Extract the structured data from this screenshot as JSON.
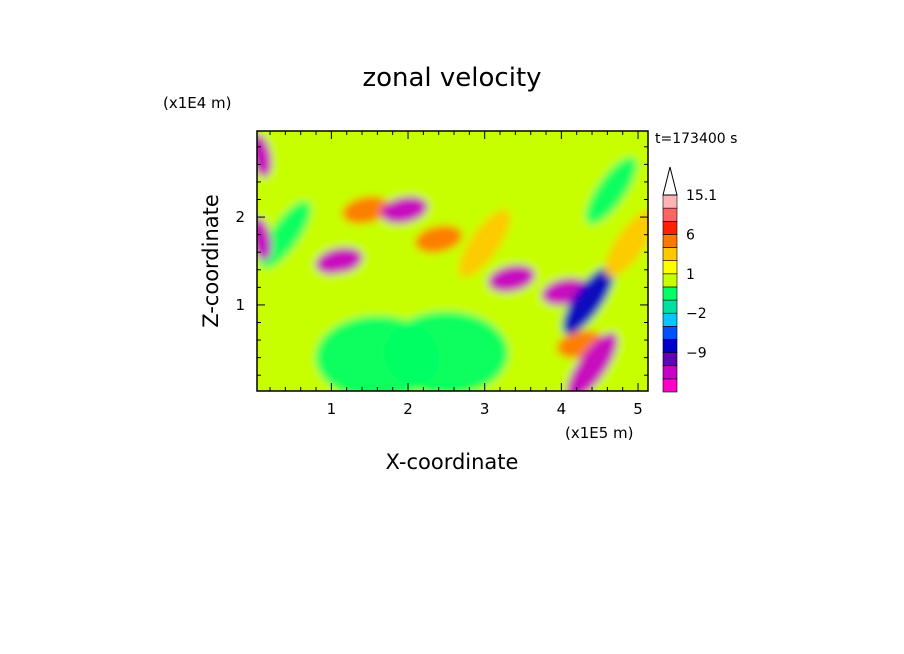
{
  "chart_data": {
    "type": "heatmap",
    "title": "zonal velocity",
    "xlabel": "X-coordinate",
    "ylabel": "Z-coordinate",
    "x_unit": "(x1E5 m)",
    "y_unit": "(x1E4 m)",
    "time_label": "t=173400 s",
    "xlim": [
      0.03,
      5.13
    ],
    "ylim": [
      0.02,
      2.98
    ],
    "x_ticks": [
      1,
      2,
      3,
      4,
      5
    ],
    "x_tick_labels": [
      "1",
      "2",
      "3",
      "4",
      "5"
    ],
    "y_ticks": [
      1,
      2
    ],
    "y_tick_labels": [
      "1",
      "2"
    ],
    "colorbar": {
      "levels": [
        -15,
        -12,
        -9,
        -6,
        -3,
        -2,
        -1,
        0,
        1,
        2,
        3,
        6,
        9,
        12,
        15.1
      ],
      "labels": [
        {
          "value": 15.1,
          "text": "15.1"
        },
        {
          "value": 6,
          "text": "6"
        },
        {
          "value": 1,
          "text": "1"
        },
        {
          "value": -2,
          "text": "−2"
        },
        {
          "value": -9,
          "text": "−9"
        }
      ],
      "colors": [
        "#ff00c8",
        "#c800c8",
        "#6400b4",
        "#0000c8",
        "#0050ff",
        "#00c8ff",
        "#00e0a0",
        "#00ff64",
        "#c8ff00",
        "#ffff00",
        "#ffc800",
        "#ff7800",
        "#ff2000",
        "#ff6464",
        "#ffb4b4"
      ],
      "extend_top_color": "#ffffff"
    },
    "field_features": [
      {
        "x": 1.45,
        "z": 2.08,
        "value": 6,
        "type": "orange-cell"
      },
      {
        "x": 1.95,
        "z": 2.08,
        "value": -12,
        "type": "blue-cell"
      },
      {
        "x": 2.4,
        "z": 1.75,
        "value": 6,
        "type": "orange-cell"
      },
      {
        "x": 1.1,
        "z": 1.5,
        "value": -12,
        "type": "blue-cell"
      },
      {
        "x": 3.0,
        "z": 1.7,
        "value": 3,
        "type": "orange-band"
      },
      {
        "x": 3.35,
        "z": 1.3,
        "value": -12,
        "type": "blue-cell"
      },
      {
        "x": 4.05,
        "z": 1.15,
        "value": -12,
        "type": "blue-cell"
      },
      {
        "x": 4.35,
        "z": 1.05,
        "value": -6,
        "type": "blue-band"
      },
      {
        "x": 4.25,
        "z": 0.55,
        "value": 6,
        "type": "orange-cell"
      },
      {
        "x": 4.4,
        "z": 0.3,
        "value": -12,
        "type": "blue-band"
      },
      {
        "x": 0.55,
        "z": 0.75,
        "value": 1,
        "type": "yellow-region"
      },
      {
        "x": 1.3,
        "z": 0.9,
        "value": 1,
        "type": "yellow-region"
      },
      {
        "x": 1.6,
        "z": 0.4,
        "value": 0,
        "type": "green-region"
      },
      {
        "x": 2.5,
        "z": 0.45,
        "value": 0,
        "type": "green-region"
      },
      {
        "x": 0.4,
        "z": 1.8,
        "value": 0,
        "type": "green-band"
      },
      {
        "x": 4.65,
        "z": 2.3,
        "value": 0,
        "type": "green-band"
      },
      {
        "x": 4.9,
        "z": 1.7,
        "value": 3,
        "type": "orange-band"
      },
      {
        "x": 0.08,
        "z": 2.7,
        "value": -12,
        "type": "blue-edge"
      },
      {
        "x": 0.08,
        "z": 1.75,
        "value": -12,
        "type": "blue-edge"
      }
    ]
  }
}
